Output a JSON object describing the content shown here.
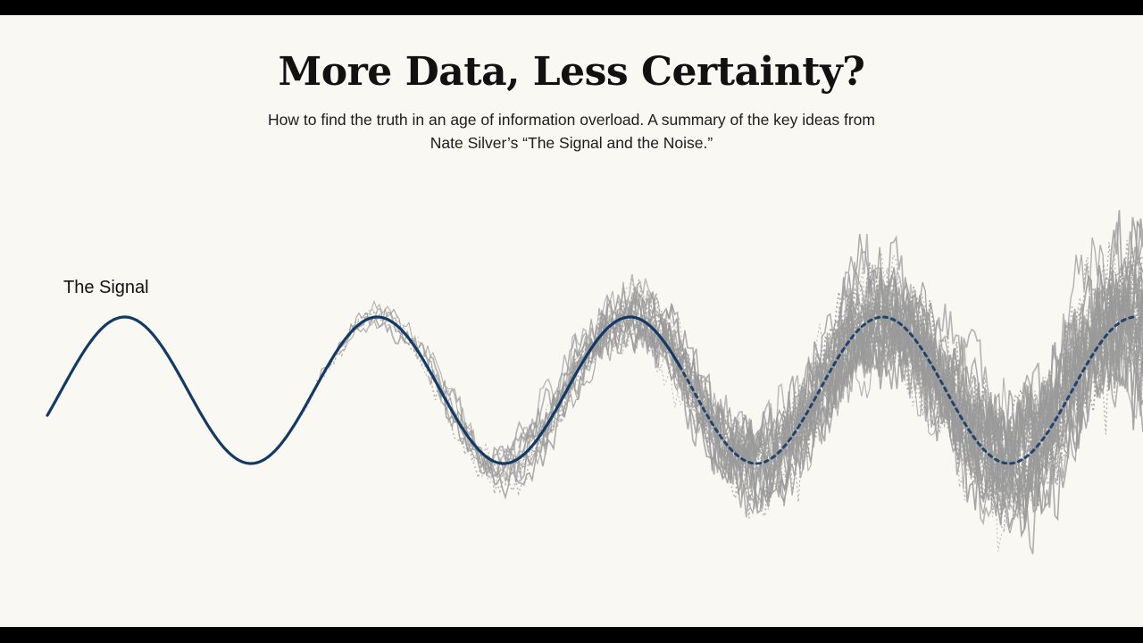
{
  "title": "More Data, Less Certainty?",
  "subtitle": "How to find the truth in an age of information overload. A summary of the key ideas from Nate Silver’s “The Signal and the Noise.”",
  "signal_label": "The Signal",
  "colors": {
    "background": "#faf8f3",
    "frame": "#000000",
    "signal": "#123a66",
    "noise": "#9a9a9a",
    "text": "#111111"
  }
}
